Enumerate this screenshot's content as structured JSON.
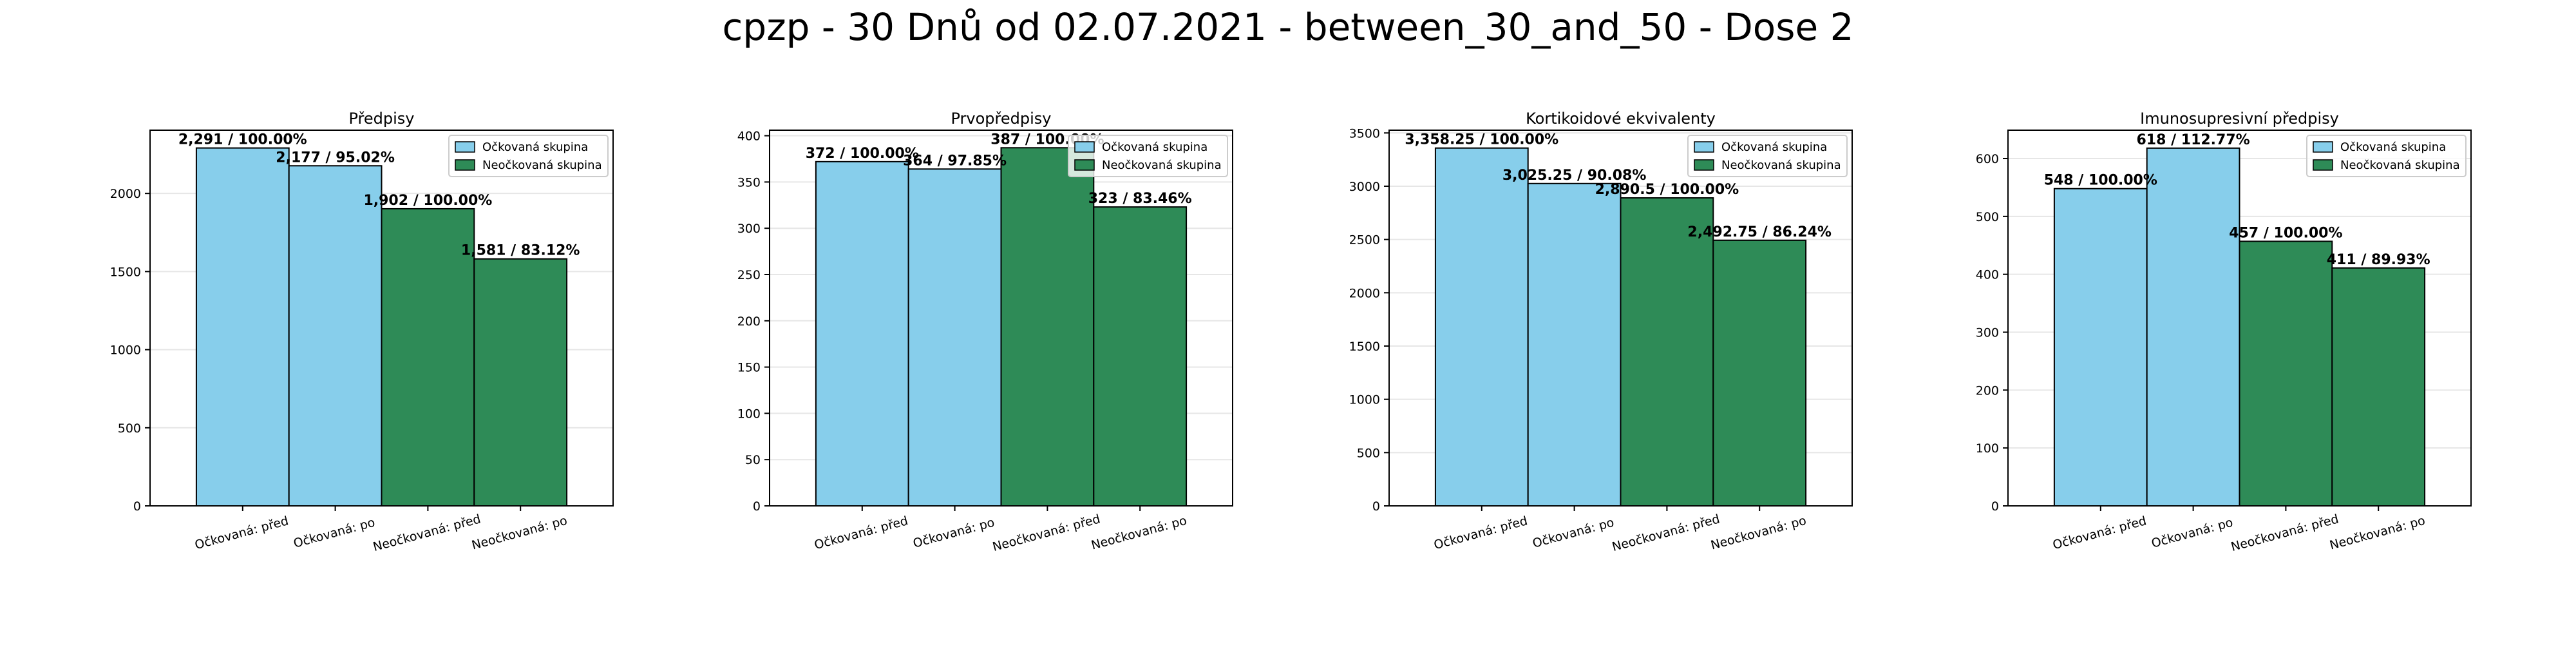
{
  "figure": {
    "title": "cpzp - 30 Dnů od 02.07.2021 - between_30_and_50 - Dose 2"
  },
  "colors": {
    "vaccinated": "#87CEEB",
    "unvaccinated": "#2E8B57",
    "edge": "#000000",
    "grid": "#e6e6e6"
  },
  "chart_data": [
    {
      "type": "bar",
      "title": "Předpisy",
      "categories": [
        "Očkovaná: před",
        "Očkovaná: po",
        "Neočkovaná: před",
        "Neočkovaná: po"
      ],
      "values": [
        2291,
        2177,
        1902,
        1581
      ],
      "labels": [
        "2,291 / 100.00%",
        "2,177 / 95.02%",
        "1,902 / 100.00%",
        "1,581 / 83.12%"
      ],
      "bar_groups": [
        "vaccinated",
        "vaccinated",
        "unvaccinated",
        "unvaccinated"
      ],
      "legend": [
        "Očkovaná skupina",
        "Neočkovaná skupina"
      ],
      "legend_position": "top-right",
      "yticks": [
        0,
        500,
        1000,
        1500,
        2000
      ],
      "ylim": [
        0,
        2405
      ],
      "grid": true
    },
    {
      "type": "bar",
      "title": "Prvopředpisy",
      "categories": [
        "Očkovaná: před",
        "Očkovaná: po",
        "Neočkovaná: před",
        "Neočkovaná: po"
      ],
      "values": [
        372,
        364,
        387,
        323
      ],
      "labels": [
        "372 / 100.00%",
        "364 / 97.85%",
        "387 / 100.00%",
        "323 / 83.46%"
      ],
      "bar_groups": [
        "vaccinated",
        "vaccinated",
        "unvaccinated",
        "unvaccinated"
      ],
      "legend": [
        "Očkovaná skupina",
        "Neočkovaná skupina"
      ],
      "legend_position": "top-right",
      "yticks": [
        0,
        50,
        100,
        150,
        200,
        250,
        300,
        350,
        400
      ],
      "ylim": [
        0,
        406
      ],
      "grid": true
    },
    {
      "type": "bar",
      "title": "Kortikoidové ekvivalenty",
      "categories": [
        "Očkovaná: před",
        "Očkovaná: po",
        "Neočkovaná: před",
        "Neočkovaná: po"
      ],
      "values": [
        3358.25,
        3025.25,
        2890.5,
        2492.75
      ],
      "labels": [
        "3,358.25 / 100.00%",
        "3,025.25 / 90.08%",
        "2,890.5 / 100.00%",
        "2,492.75 / 86.24%"
      ],
      "bar_groups": [
        "vaccinated",
        "vaccinated",
        "unvaccinated",
        "unvaccinated"
      ],
      "legend": [
        "Očkovaná skupina",
        "Neočkovaná skupina"
      ],
      "legend_position": "top-right",
      "yticks": [
        0,
        500,
        1000,
        1500,
        2000,
        2500,
        3000,
        3500
      ],
      "ylim": [
        0,
        3526
      ],
      "grid": true
    },
    {
      "type": "bar",
      "title": "Imunosupresivní předpisy",
      "categories": [
        "Očkovaná: před",
        "Očkovaná: po",
        "Neočkovaná: před",
        "Neočkovaná: po"
      ],
      "values": [
        548,
        618,
        457,
        411
      ],
      "labels": [
        "548 / 100.00%",
        "618 / 112.77%",
        "457 / 100.00%",
        "411 / 89.93%"
      ],
      "bar_groups": [
        "vaccinated",
        "vaccinated",
        "unvaccinated",
        "unvaccinated"
      ],
      "legend": [
        "Očkovaná skupina",
        "Neočkovaná skupina"
      ],
      "legend_position": "top-right",
      "yticks": [
        0,
        100,
        200,
        300,
        400,
        500,
        600
      ],
      "ylim": [
        0,
        649
      ],
      "grid": true
    }
  ]
}
